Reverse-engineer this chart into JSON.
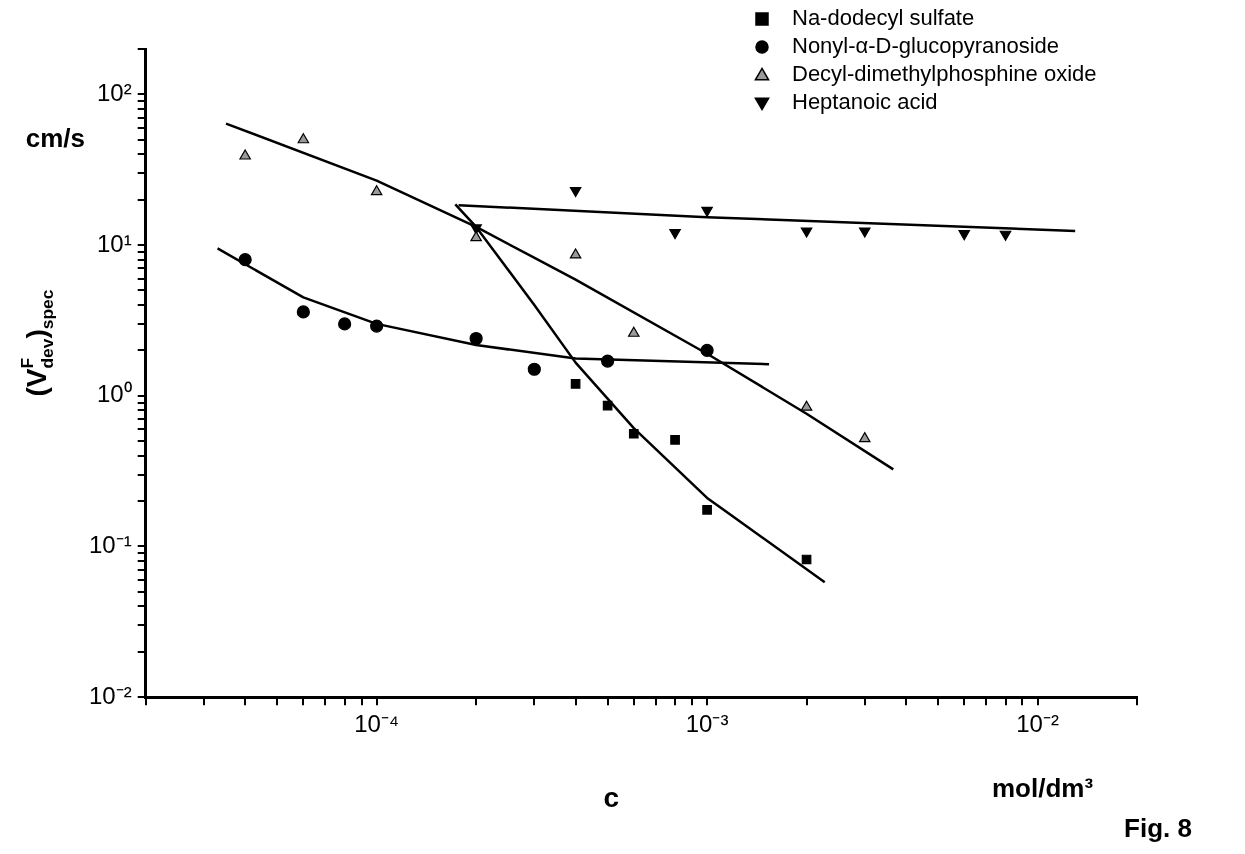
{
  "chart_data": {
    "type": "scatter",
    "xlabel": "c",
    "ylabel": "(V$^{F}$$_{dev}$)$_{spec}$",
    "annotations": [
      "cm/s",
      "mol/dm³",
      "Fig. 8"
    ],
    "log": "xy",
    "grid": false,
    "legend": "top right",
    "xlim": [
      2e-05,
      0.02
    ],
    "xticks": [
      {
        "value": 2e-05,
        "label": null
      },
      {
        "value": 3e-05,
        "label": null
      },
      {
        "value": 4e-05,
        "label": null
      },
      {
        "value": 5e-05,
        "label": null
      },
      {
        "value": 6e-05,
        "label": null
      },
      {
        "value": 7e-05,
        "label": null
      },
      {
        "value": 8e-05,
        "label": null
      },
      {
        "value": 9e-05,
        "label": null
      },
      {
        "value": 0.0001,
        "label": "10⁻⁴"
      },
      {
        "value": 0.0002,
        "label": null
      },
      {
        "value": 0.0003,
        "label": null
      },
      {
        "value": 0.0004,
        "label": null
      },
      {
        "value": 0.0005,
        "label": null
      },
      {
        "value": 0.0006,
        "label": null
      },
      {
        "value": 0.0007,
        "label": null
      },
      {
        "value": 0.0008,
        "label": null
      },
      {
        "value": 0.0009,
        "label": null
      },
      {
        "value": 0.001,
        "label": "10⁻³"
      },
      {
        "value": 0.002,
        "label": null
      },
      {
        "value": 0.003,
        "label": null
      },
      {
        "value": 0.004,
        "label": null
      },
      {
        "value": 0.005,
        "label": null
      },
      {
        "value": 0.006,
        "label": null
      },
      {
        "value": 0.007,
        "label": null
      },
      {
        "value": 0.008,
        "label": null
      },
      {
        "value": 0.009,
        "label": null
      },
      {
        "value": 0.01,
        "label": "10⁻²"
      },
      {
        "value": 0.02,
        "label": null
      }
    ],
    "ylim": [
      0.01,
      200
    ],
    "yticks": [
      {
        "value": 0.01,
        "label": "10⁻²"
      },
      {
        "value": 0.02,
        "label": null
      },
      {
        "value": 0.03,
        "label": null
      },
      {
        "value": 0.04,
        "label": null
      },
      {
        "value": 0.05,
        "label": null
      },
      {
        "value": 0.06,
        "label": null
      },
      {
        "value": 0.07,
        "label": null
      },
      {
        "value": 0.08,
        "label": null
      },
      {
        "value": 0.09,
        "label": null
      },
      {
        "value": 0.1,
        "label": "10⁻¹"
      },
      {
        "value": 0.2,
        "label": null
      },
      {
        "value": 0.3,
        "label": null
      },
      {
        "value": 0.4,
        "label": null
      },
      {
        "value": 0.5,
        "label": null
      },
      {
        "value": 0.6,
        "label": null
      },
      {
        "value": 0.7,
        "label": null
      },
      {
        "value": 0.8,
        "label": null
      },
      {
        "value": 0.9,
        "label": null
      },
      {
        "value": 1,
        "label": "10⁰"
      },
      {
        "value": 2,
        "label": null
      },
      {
        "value": 3,
        "label": null
      },
      {
        "value": 4,
        "label": null
      },
      {
        "value": 5,
        "label": null
      },
      {
        "value": 6,
        "label": null
      },
      {
        "value": 7,
        "label": null
      },
      {
        "value": 8,
        "label": null
      },
      {
        "value": 9,
        "label": null
      },
      {
        "value": 10,
        "label": "10¹"
      },
      {
        "value": 20,
        "label": null
      },
      {
        "value": 30,
        "label": null
      },
      {
        "value": 40,
        "label": null
      },
      {
        "value": 50,
        "label": null
      },
      {
        "value": 60,
        "label": null
      },
      {
        "value": 70,
        "label": null
      },
      {
        "value": 80,
        "label": null
      },
      {
        "value": 90,
        "label": null
      },
      {
        "value": 100,
        "label": "10²"
      },
      {
        "value": 200,
        "label": null
      }
    ],
    "series": [
      {
        "name": "Na-dodecyl sulfate",
        "marker": "square",
        "color": "#000000",
        "x": [
          0.0004,
          0.0005,
          0.0006,
          0.0008,
          0.001,
          0.002
        ],
        "values": [
          1.2,
          0.86,
          0.56,
          0.51,
          0.175,
          0.082
        ]
      },
      {
        "name": "Nonyl-α-D-glucopyranoside",
        "marker": "circle",
        "color": "#000000",
        "x": [
          4e-05,
          6e-05,
          8e-05,
          0.0001,
          0.0002,
          0.0003,
          0.0005,
          0.001
        ],
        "values": [
          8.0,
          3.6,
          3.0,
          2.9,
          2.4,
          1.5,
          1.7,
          2.0
        ]
      },
      {
        "name": "Decyl-dimethylphosphine oxide",
        "marker": "triangle",
        "color": "#9a9a9a",
        "x": [
          4e-05,
          6e-05,
          0.0001,
          0.0002,
          0.0004,
          0.0006,
          0.002,
          0.003
        ],
        "values": [
          39,
          50,
          22.6,
          11.2,
          8.6,
          2.6,
          0.84,
          0.52
        ]
      },
      {
        "name": "Heptanoic acid",
        "marker": "triangle_down",
        "color": "#000000",
        "x": [
          0.0002,
          0.0004,
          0.0008,
          0.001,
          0.002,
          0.003,
          0.006,
          0.008
        ],
        "values": [
          13,
          23,
          12.1,
          17,
          12.4,
          12.4,
          11.9,
          11.8
        ]
      },
      {
        "type": "line",
        "marker": "none",
        "line_style": "solid",
        "color": "#000000",
        "x": [
          0.000173,
          0.0002,
          0.0003,
          0.0004,
          0.0006,
          0.001,
          0.00227
        ],
        "values": [
          18.6,
          13.2,
          4.0,
          1.66,
          0.61,
          0.21,
          0.058
        ]
      },
      {
        "type": "line",
        "marker": "none",
        "line_style": "solid",
        "color": "#000000",
        "x": [
          3.3e-05,
          6e-05,
          0.0001,
          0.0002,
          0.0004,
          0.00154
        ],
        "values": [
          9.5,
          4.5,
          3.0,
          2.17,
          1.77,
          1.62
        ]
      },
      {
        "type": "line",
        "marker": "none",
        "line_style": "solid",
        "color": "#000000",
        "x": [
          3.5e-05,
          0.0001,
          0.0002,
          0.0004,
          0.001,
          0.002,
          0.00366
        ],
        "values": [
          64,
          26.8,
          13.2,
          5.9,
          1.9,
          0.76,
          0.325
        ]
      },
      {
        "type": "line",
        "marker": "none",
        "line_style": "solid",
        "color": "#000000",
        "x": [
          0.000177,
          0.001,
          0.013
        ],
        "values": [
          18.4,
          15.3,
          12.4
        ]
      }
    ]
  }
}
